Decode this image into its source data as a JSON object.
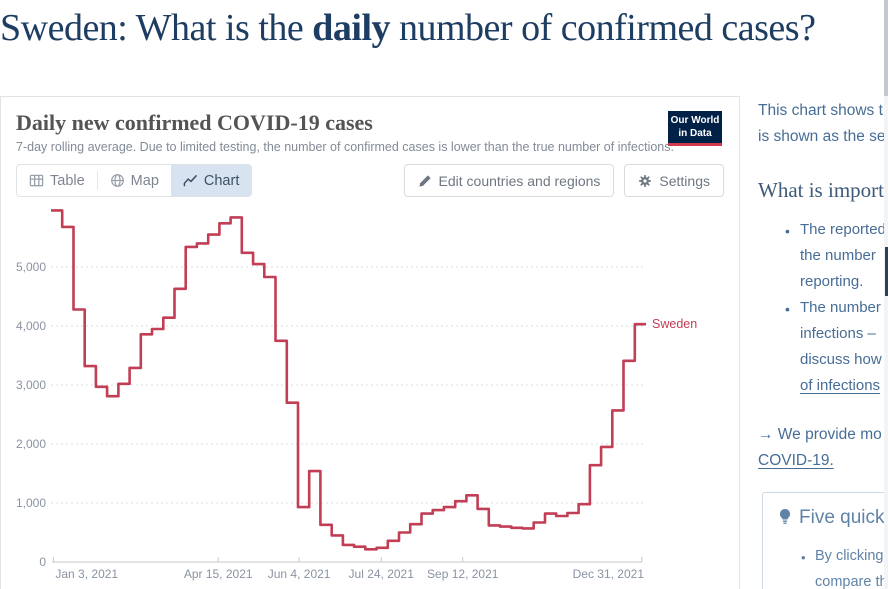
{
  "page": {
    "title_parts": {
      "pre": "Sweden: What is the ",
      "bold": "daily",
      "post": " number of confirmed cases?"
    }
  },
  "chart_panel": {
    "title": "Daily new confirmed COVID-19 cases",
    "subtitle": "7-day rolling average. Due to limited testing, the number of confirmed cases is lower than the true number of infections.",
    "logo": {
      "line1": "Our World",
      "line2": "in Data"
    },
    "tabs": [
      {
        "label": "Table"
      },
      {
        "label": "Map"
      },
      {
        "label": "Chart"
      }
    ],
    "buttons": {
      "edit": "Edit countries and regions",
      "settings": "Settings"
    }
  },
  "chart_data": {
    "type": "line",
    "step": true,
    "title": "Daily new confirmed COVID-19 cases",
    "xlabel": "",
    "ylabel": "",
    "ylim": [
      0,
      6200
    ],
    "grid": true,
    "legend_position": "end-of-line",
    "end_label": "Sweden",
    "x_start": "Jan 3, 2021",
    "x_end": "early Jan 2022",
    "x_ticks": [
      {
        "label": "Jan 3, 2021",
        "pos": 0.004,
        "align": "left"
      },
      {
        "label": "Apr 15, 2021",
        "pos": 0.281,
        "align": "center"
      },
      {
        "label": "Jun 4, 2021",
        "pos": 0.417,
        "align": "center"
      },
      {
        "label": "Jul 24, 2021",
        "pos": 0.555,
        "align": "center"
      },
      {
        "label": "Sep 12, 2021",
        "pos": 0.692,
        "align": "center"
      },
      {
        "label": "Dec 31, 2021",
        "pos": 0.993,
        "align": "right"
      }
    ],
    "y_ticks": [
      {
        "label": "0",
        "value": 0
      },
      {
        "label": "1,000",
        "value": 1000
      },
      {
        "label": "2,000",
        "value": 2000
      },
      {
        "label": "3,000",
        "value": 3000
      },
      {
        "label": "4,000",
        "value": 4000
      },
      {
        "label": "5,000",
        "value": 5000
      }
    ],
    "series": [
      {
        "name": "Sweden",
        "color": "#c13e55",
        "interval": "weekly",
        "values": [
          5960,
          5680,
          4280,
          3320,
          2970,
          2810,
          3020,
          3290,
          3860,
          3950,
          4140,
          4630,
          5340,
          5400,
          5550,
          5740,
          5840,
          5240,
          5050,
          4830,
          3750,
          2700,
          930,
          1540,
          630,
          450,
          290,
          260,
          215,
          240,
          360,
          500,
          640,
          820,
          880,
          930,
          1030,
          1130,
          900,
          620,
          600,
          580,
          570,
          670,
          820,
          780,
          830,
          980,
          1640,
          1950,
          2570,
          3410,
          4030
        ]
      }
    ]
  },
  "sidebar": {
    "p1_l1": "This chart shows t",
    "p1_l2": "is shown as the se",
    "heading": "What is import",
    "bullets1": [
      "The reported",
      "the number",
      "reporting."
    ],
    "bullets2": [
      "The number",
      "infections –",
      "discuss how",
      "of infections"
    ],
    "arrow_l1": "→ We provide mo",
    "arrow_l2": "COVID-19.",
    "tips_box": {
      "title": "Five quick",
      "bullet_l1": "By clicking",
      "bullet_l2": "compare th"
    }
  },
  "colors": {
    "accent_line": "#c13e55",
    "logo_bg": "#002147",
    "logo_red": "#cf3a4e",
    "title_blue": "#1d3d63",
    "sidebar_text": "#476d96"
  }
}
